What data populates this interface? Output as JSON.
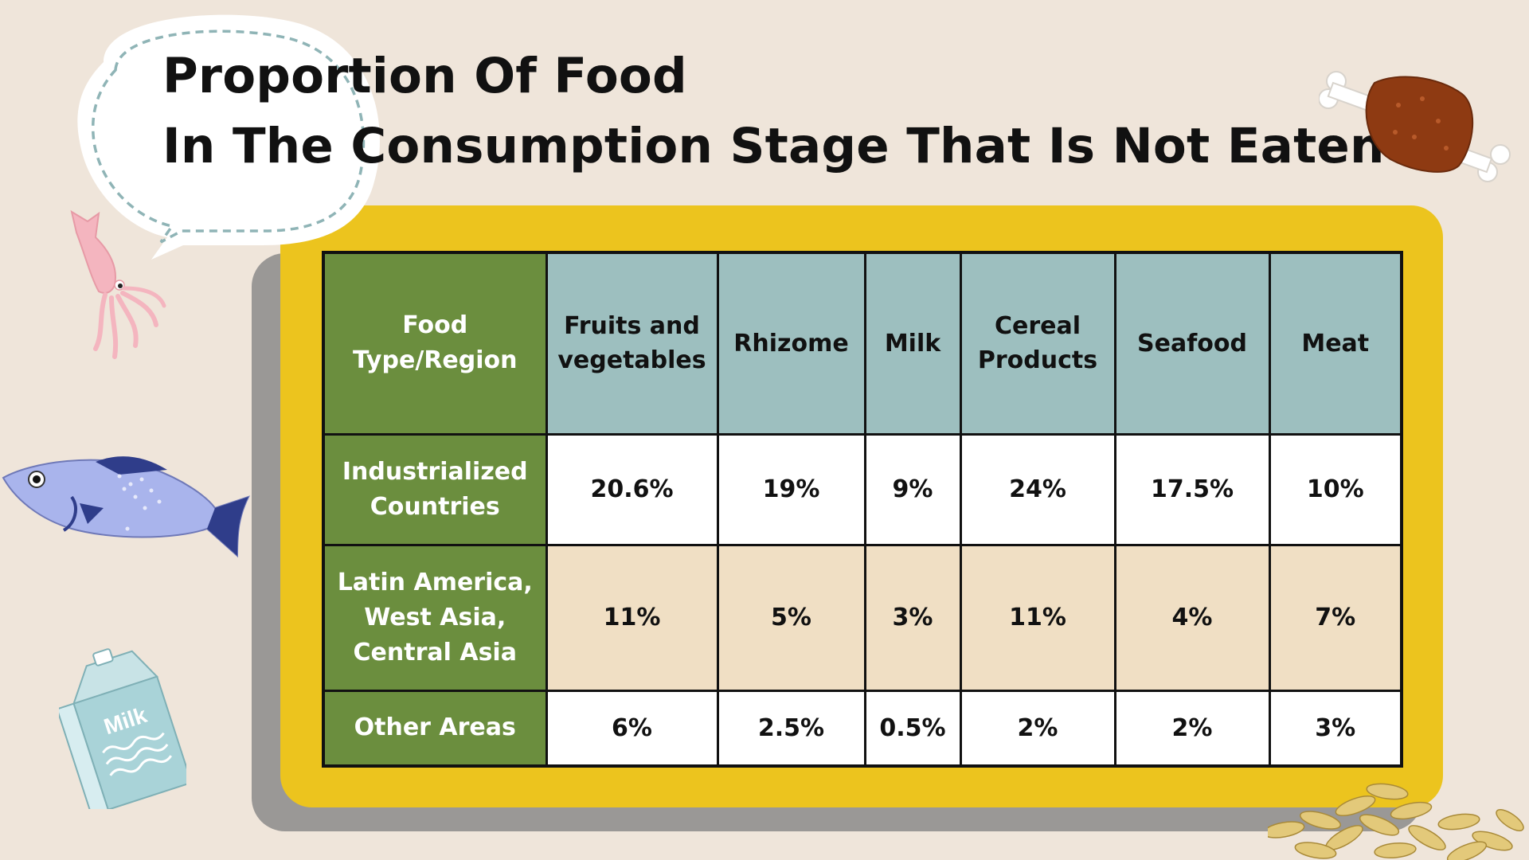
{
  "title": {
    "line1": "Proportion Of Food",
    "line2": "In The Consumption Stage That Is Not Eaten"
  },
  "chart_data": {
    "type": "table",
    "title": "Proportion Of Food In The Consumption Stage That Is Not Eaten",
    "corner_header": "Food Type/Region",
    "columns": [
      "Fruits and vegetables",
      "Rhizome",
      "Milk",
      "Cereal Products",
      "Seafood",
      "Meat"
    ],
    "rows": [
      {
        "region": "Industrialized Countries",
        "values": [
          "20.6%",
          "19%",
          "9%",
          "24%",
          "17.5%",
          "10%"
        ]
      },
      {
        "region": "Latin America, West Asia, Central Asia",
        "values": [
          "11%",
          "5%",
          "3%",
          "11%",
          "4%",
          "7%"
        ]
      },
      {
        "region": "Other Areas",
        "values": [
          "6%",
          "2.5%",
          "0.5%",
          "2%",
          "2%",
          "3%"
        ]
      }
    ]
  },
  "decorations": {
    "milk_carton_text": "Milk",
    "icons": [
      "speech-bubble",
      "squid-icon",
      "fish-icon",
      "milk-carton-icon",
      "meat-icon",
      "grains-icon"
    ]
  },
  "colors": {
    "background": "#efe5da",
    "board": "#ecc41e",
    "board_shadow": "#9a9896",
    "header_teal": "#9dbfbf",
    "region_green": "#6b8e3e",
    "row_tan": "#f0dfc4",
    "row_white": "#ffffff"
  }
}
